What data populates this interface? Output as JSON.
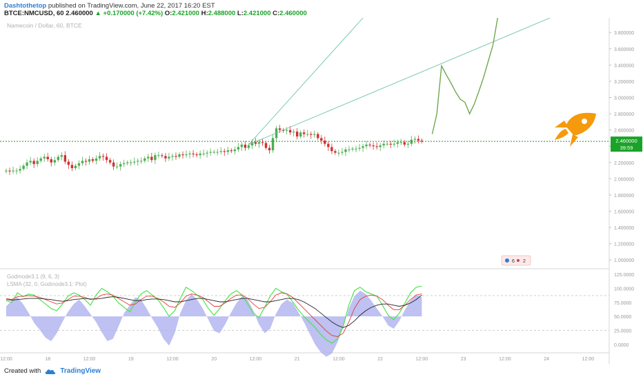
{
  "header": {
    "author": "Dashtothetop",
    "published": "published on TradingView.com, June 22, 2017 16:20 EST",
    "symbol": "BTCE:NMCUSD, 60",
    "last": "2.460000",
    "change": "+0.170000 (+7.42%)",
    "o_label": "O:",
    "o_value": "2.421000",
    "h_label": "H:",
    "h_value": "2.488000",
    "l_label": "L:",
    "l_value": "2.421000",
    "c_label": "C:",
    "c_value": "2.460000"
  },
  "footer": {
    "created_with": "Created with",
    "brand": "TradingView"
  },
  "colors": {
    "up": "#4caf50",
    "down": "#d32f2f",
    "trend": "#6cc3a6",
    "forecast": "#6fa84f",
    "price_line": "#1a8f2e",
    "badge": "#1aa329",
    "rocket": "#f59a0c",
    "osc_fill": "#aeb1ee",
    "osc_green": "#4ee24e",
    "osc_red": "#e53935",
    "osc_black": "#222222",
    "axis_text": "#999999"
  },
  "chart_data": [
    {
      "type": "candlestick",
      "title": "Namecoin / Dollar, 60, BTCE",
      "y_ticks": [
        "3.800000",
        "3.600000",
        "3.400000",
        "3.200000",
        "3.000000",
        "2.800000",
        "2.600000",
        "2.400000",
        "2.200000",
        "2.000000",
        "1.800000",
        "1.600000",
        "1.400000",
        "1.200000",
        "1.000000"
      ],
      "ylim": [
        0.9,
        3.98
      ],
      "x_ticks": [
        "12:00",
        "18",
        "12:00",
        "19",
        "12:00",
        "20",
        "12:00",
        "21",
        "12:00",
        "22",
        "12:00",
        "23",
        "12:00",
        "24",
        "12:00"
      ],
      "last_price": "2.460000",
      "countdown": "39:59",
      "candles_close": [
        2.1,
        2.09,
        2.1,
        2.1,
        2.12,
        2.16,
        2.2,
        2.22,
        2.18,
        2.22,
        2.25,
        2.27,
        2.24,
        2.2,
        2.23,
        2.27,
        2.29,
        2.21,
        2.17,
        2.13,
        2.16,
        2.19,
        2.22,
        2.21,
        2.24,
        2.22,
        2.25,
        2.28,
        2.27,
        2.23,
        2.2,
        2.15,
        2.15,
        2.18,
        2.19,
        2.2,
        2.2,
        2.21,
        2.22,
        2.22,
        2.25,
        2.27,
        2.23,
        2.29,
        2.29,
        2.28,
        2.25,
        2.27,
        2.28,
        2.27,
        2.3,
        2.29,
        2.3,
        2.31,
        2.3,
        2.29,
        2.31,
        2.31,
        2.32,
        2.33,
        2.33,
        2.33,
        2.34,
        2.33,
        2.35,
        2.34,
        2.36,
        2.39,
        2.42,
        2.38,
        2.41,
        2.45,
        2.43,
        2.45,
        2.44,
        2.38,
        2.35,
        2.5,
        2.62,
        2.6,
        2.59,
        2.6,
        2.57,
        2.58,
        2.52,
        2.57,
        2.55,
        2.55,
        2.54,
        2.55,
        2.5,
        2.47,
        2.43,
        2.39,
        2.34,
        2.32,
        2.32,
        2.33,
        2.36,
        2.36,
        2.37,
        2.37,
        2.38,
        2.4,
        2.42,
        2.41,
        2.4,
        2.39,
        2.41,
        2.43,
        2.43,
        2.42,
        2.43,
        2.45,
        2.45,
        2.42,
        2.43,
        2.48,
        2.49,
        2.47,
        2.46
      ],
      "trend_lines": [
        {
          "from": [
            "21 00:00",
            2.42
          ],
          "to": [
            "22 09:00",
            3.98
          ]
        },
        {
          "from": [
            "21 00:00",
            2.42
          ],
          "to": [
            "24 15:00",
            3.98
          ]
        }
      ],
      "forecast_path": [
        2.55,
        2.8,
        3.39,
        3.28,
        3.18,
        3.07,
        2.98,
        2.94,
        2.8,
        2.92,
        3.08,
        3.25,
        3.45,
        3.65,
        3.98
      ],
      "annotation": "rocket"
    },
    {
      "type": "line",
      "title": "Godmode3.1 (9, 6, 3)",
      "subtitle": "LSMA (32, 0, Godmode3.1: Plot)",
      "y_ticks": [
        "125.0000",
        "100.0000",
        "75.0000",
        "50.0000",
        "25.0000",
        "0.0000"
      ],
      "ylim": [
        -10,
        130
      ],
      "series": [
        {
          "color_key": "osc_green",
          "values": [
            78,
            75,
            92,
            85,
            90,
            88,
            80,
            72,
            64,
            60,
            72,
            86,
            92,
            88,
            80,
            70,
            88,
            100,
            94,
            86,
            74,
            66,
            58,
            76,
            90,
            96,
            88,
            80,
            66,
            50,
            60,
            82,
            102,
            96,
            88,
            80,
            64,
            52,
            64,
            78,
            90,
            96,
            88,
            72,
            56,
            48,
            66,
            86,
            100,
            94,
            90,
            76,
            62,
            50,
            40,
            30,
            18,
            8,
            2,
            10,
            32,
            70,
            96,
            102,
            94,
            90,
            86,
            70,
            52,
            44,
            56,
            74,
            92,
            102,
            104
          ]
        },
        {
          "color_key": "osc_red",
          "values": [
            82,
            80,
            85,
            86,
            87,
            86,
            84,
            80,
            76,
            72,
            74,
            80,
            86,
            86,
            84,
            80,
            82,
            88,
            90,
            88,
            82,
            76,
            70,
            72,
            80,
            86,
            86,
            82,
            76,
            68,
            66,
            74,
            86,
            90,
            88,
            84,
            76,
            68,
            68,
            74,
            82,
            88,
            88,
            82,
            72,
            64,
            66,
            76,
            88,
            92,
            90,
            84,
            74,
            64,
            54,
            44,
            34,
            24,
            16,
            14,
            20,
            40,
            64,
            80,
            86,
            88,
            86,
            80,
            70,
            62,
            62,
            70,
            80,
            88,
            90
          ]
        },
        {
          "color_key": "osc_black",
          "values": [
            80,
            79,
            80,
            81,
            82,
            82,
            82,
            81,
            80,
            78,
            77,
            78,
            80,
            81,
            82,
            81,
            81,
            82,
            84,
            85,
            84,
            82,
            80,
            78,
            78,
            80,
            81,
            81,
            80,
            78,
            76,
            76,
            78,
            80,
            82,
            82,
            80,
            78,
            76,
            76,
            78,
            80,
            82,
            82,
            80,
            78,
            76,
            76,
            78,
            80,
            82,
            82,
            80,
            76,
            70,
            64,
            56,
            48,
            40,
            34,
            30,
            34,
            42,
            52,
            60,
            66,
            70,
            72,
            72,
            70,
            68,
            70,
            74,
            80,
            88
          ]
        }
      ],
      "histogram": [
        18,
        28,
        34,
        22,
        6,
        -12,
        -24,
        -38,
        -44,
        -30,
        -10,
        8,
        22,
        30,
        18,
        4,
        -10,
        -28,
        -44,
        -40,
        -18,
        6,
        20,
        34,
        30,
        14,
        -4,
        -20,
        -40,
        -52,
        -30,
        6,
        28,
        40,
        30,
        14,
        -6,
        -26,
        -30,
        -14,
        6,
        24,
        36,
        30,
        10,
        -14,
        -30,
        -22,
        4,
        22,
        30,
        24,
        8,
        -10,
        -30,
        -50,
        -64,
        -72,
        -66,
        -46,
        -20,
        14,
        36,
        46,
        40,
        28,
        14,
        0,
        -16,
        -22,
        -8,
        12,
        28,
        38,
        34
      ]
    }
  ]
}
